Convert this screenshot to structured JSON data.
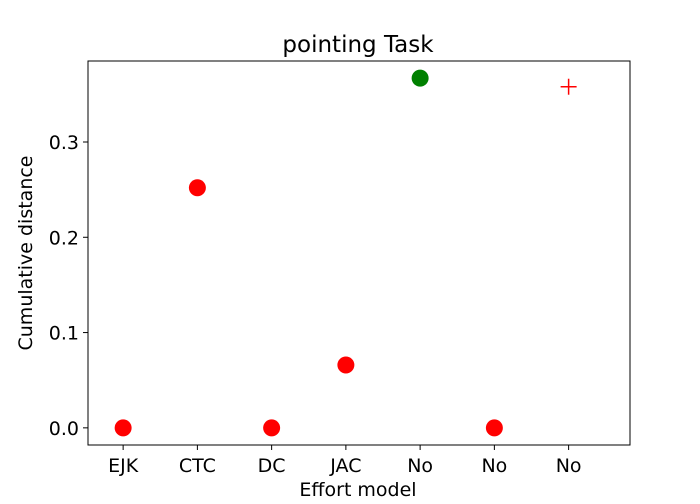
{
  "chart_data": {
    "type": "scatter",
    "title": "pointing Task",
    "xlabel": "Effort model",
    "ylabel": "Cumulative distance",
    "categories": [
      "EJK",
      "CTC",
      "DC",
      "JAC",
      "No",
      "No",
      "No"
    ],
    "ylim": [
      -0.018,
      0.385
    ],
    "yticks": [
      0.0,
      0.1,
      0.2,
      0.3
    ],
    "ytick_labels": [
      "0.0",
      "0.1",
      "0.2",
      "0.3"
    ],
    "grid": false,
    "points": [
      {
        "category_index": 0,
        "y": 0.0,
        "color": "#ff0000",
        "marker": "circle"
      },
      {
        "category_index": 1,
        "y": 0.252,
        "color": "#ff0000",
        "marker": "circle"
      },
      {
        "category_index": 2,
        "y": 0.0,
        "color": "#ff0000",
        "marker": "circle"
      },
      {
        "category_index": 3,
        "y": 0.066,
        "color": "#ff0000",
        "marker": "circle"
      },
      {
        "category_index": 4,
        "y": 0.367,
        "color": "#008000",
        "marker": "circle"
      },
      {
        "category_index": 5,
        "y": 0.0,
        "color": "#ff0000",
        "marker": "circle"
      },
      {
        "category_index": 6,
        "y": 0.358,
        "color": "#ff0000",
        "marker": "plus"
      }
    ]
  }
}
